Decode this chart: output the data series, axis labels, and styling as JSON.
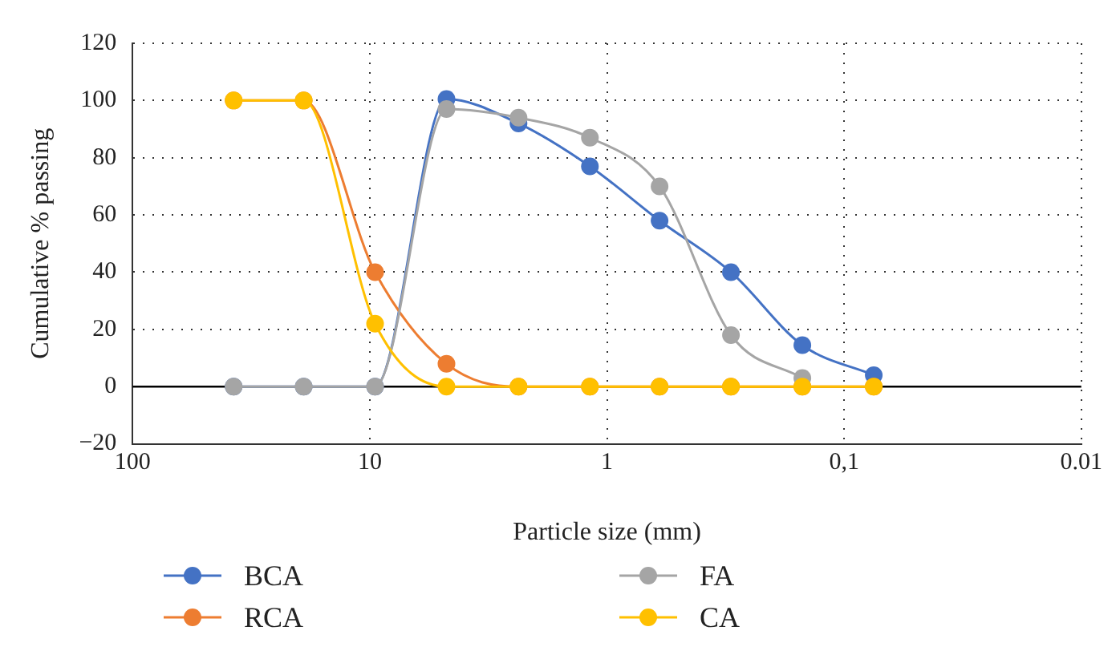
{
  "chart_data": {
    "type": "line",
    "xlabel": "Particle size (mm)",
    "ylabel": "Cumulative % passing",
    "x": [
      37.5,
      19,
      9.5,
      4.75,
      2.36,
      1.18,
      0.6,
      0.3,
      0.15,
      0.075
    ],
    "series": [
      {
        "name": "BCA",
        "color": "#4472c4",
        "values": [
          0,
          0,
          0,
          100.5,
          92,
          77,
          58,
          40,
          14.5,
          4
        ]
      },
      {
        "name": "RCA",
        "color": "#ed7d31",
        "values": [
          100,
          100,
          40,
          8,
          0,
          0,
          0,
          0,
          0,
          0
        ]
      },
      {
        "name": "FA",
        "color": "#a5a5a5",
        "values": [
          0,
          0,
          0,
          97,
          94,
          87,
          70,
          18,
          3,
          null
        ]
      },
      {
        "name": "CA",
        "color": "#ffc000",
        "values": [
          100,
          100,
          22,
          0,
          0,
          0,
          0,
          0,
          0,
          0
        ]
      }
    ],
    "log": "x",
    "xlim": [
      100,
      0.01
    ],
    "xticks": [
      100,
      10,
      1,
      {
        "value": 0.1,
        "label": "0,1"
      },
      0.01
    ],
    "ylim": [
      -20,
      120
    ],
    "yticks": [
      {
        "value": -20,
        "label": "−20"
      },
      0,
      20,
      40,
      60,
      80,
      100,
      120
    ],
    "ref_lines": [
      {
        "axis": "y",
        "value": 0,
        "color": "#000000",
        "line_style": "solid"
      }
    ],
    "grid": true,
    "legend": "bottom",
    "marker": "circle",
    "line_style": "solid"
  }
}
